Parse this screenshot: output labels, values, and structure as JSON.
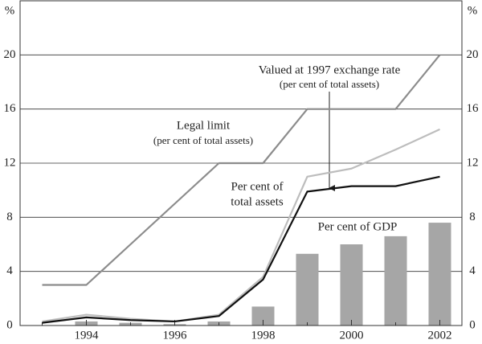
{
  "chart_data": {
    "type": "line",
    "y_unit": "%",
    "x": [
      1993,
      1994,
      1995,
      1996,
      1997,
      1998,
      1999,
      2000,
      2001,
      2002
    ],
    "series": [
      {
        "name": "Per cent of GDP",
        "type": "bar",
        "color": "#a6a6a6",
        "values": [
          null,
          0.3,
          0.2,
          0.1,
          0.3,
          1.4,
          5.3,
          6.0,
          6.6,
          7.6
        ]
      },
      {
        "name": "Legal limit",
        "type": "line",
        "color": "#8c8c8c",
        "values": [
          3,
          3,
          6,
          9,
          12,
          12,
          16,
          16,
          16,
          20
        ]
      },
      {
        "name": "Valued at 1997 exchange rate",
        "type": "line",
        "color": "#bdbdbd",
        "values": [
          0.3,
          0.8,
          0.5,
          0.3,
          0.8,
          3.6,
          11.0,
          11.6,
          13.0,
          14.5
        ]
      },
      {
        "name": "Per cent of total assets",
        "type": "line",
        "color": "#111111",
        "values": [
          0.2,
          0.6,
          0.4,
          0.3,
          0.7,
          3.4,
          9.9,
          10.3,
          10.3,
          11.0
        ]
      }
    ],
    "annotations": [
      {
        "text": "Valued at 1997 exchange rate",
        "subtext": "(per cent of total assets)"
      },
      {
        "text": "Legal limit",
        "subtext": "(per cent of total assets)"
      },
      {
        "text": "Per cent of",
        "subtext": "total assets"
      },
      {
        "text": "Per cent of GDP"
      }
    ],
    "xlim": [
      1992.5,
      2002.5
    ],
    "xticks": [
      1994,
      1996,
      1998,
      2000,
      2002
    ],
    "xminorticks": [
      1993,
      1995,
      1997,
      1999,
      2001
    ],
    "ylim": [
      0,
      24
    ],
    "yticks": [
      0,
      4,
      8,
      12,
      16,
      20
    ],
    "y2lim": [
      0,
      24
    ],
    "y2ticks": [
      0,
      4,
      8,
      12,
      16,
      20
    ],
    "grid": true
  }
}
